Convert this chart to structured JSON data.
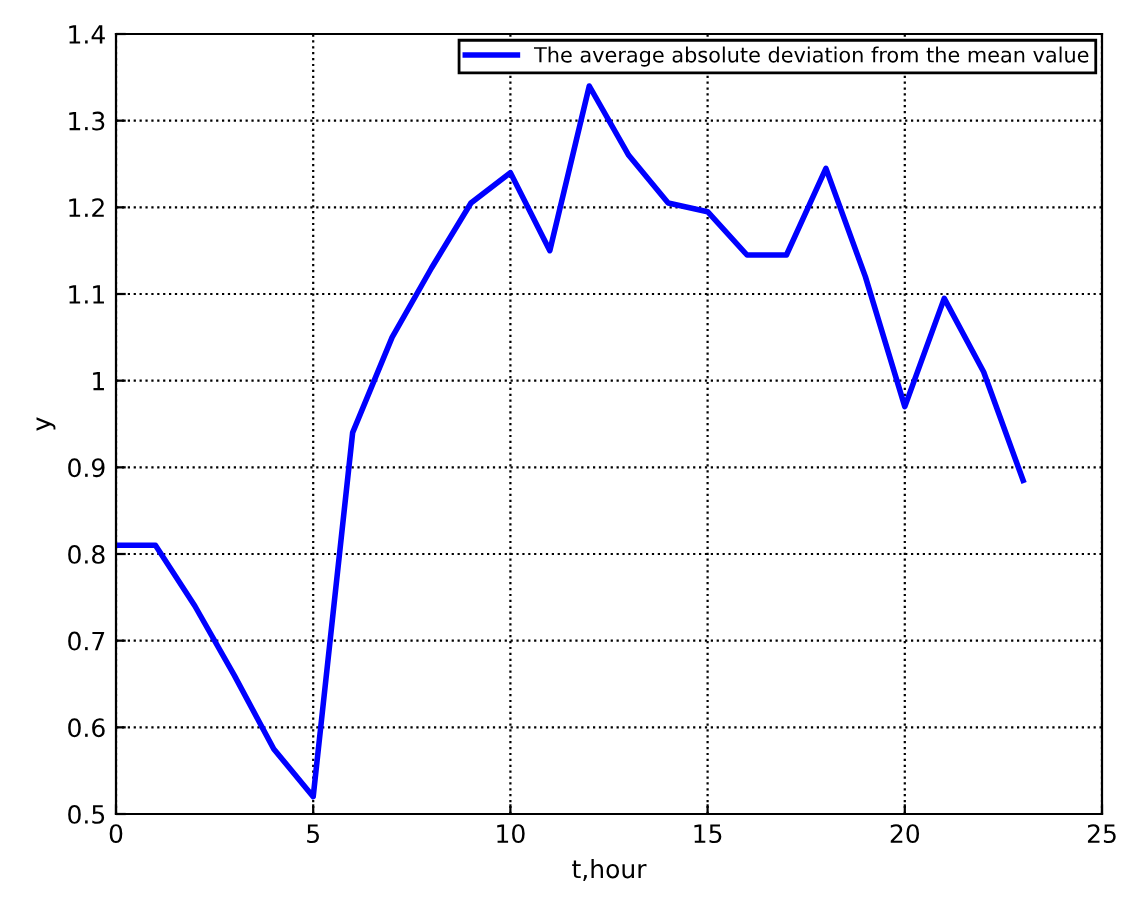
{
  "chart_data": {
    "type": "line",
    "xlabel": "t,hour",
    "ylabel": "y",
    "x": [
      0,
      1,
      2,
      3,
      4,
      5,
      6,
      7,
      8,
      9,
      10,
      11,
      12,
      13,
      14,
      15,
      16,
      17,
      18,
      19,
      20,
      21,
      22,
      23
    ],
    "series": [
      {
        "name": "The average absolute deviation from the mean value",
        "color": "#0000ff",
        "values": [
          0.81,
          0.81,
          0.74,
          0.66,
          0.575,
          0.52,
          0.94,
          1.05,
          1.13,
          1.205,
          1.24,
          1.15,
          1.34,
          1.26,
          1.205,
          1.195,
          1.145,
          1.145,
          1.245,
          1.12,
          0.97,
          1.095,
          1.01,
          0.885
        ]
      }
    ],
    "xlim": [
      0,
      25
    ],
    "xticks": [
      0,
      5,
      10,
      15,
      20,
      25
    ],
    "ylim": [
      0.5,
      1.4
    ],
    "yticks": [
      0.5,
      0.6,
      0.7,
      0.8,
      0.9,
      1,
      1.1,
      1.2,
      1.3,
      1.4
    ],
    "grid": true,
    "legend": "top right",
    "line_style": "solid",
    "marker": "none"
  }
}
